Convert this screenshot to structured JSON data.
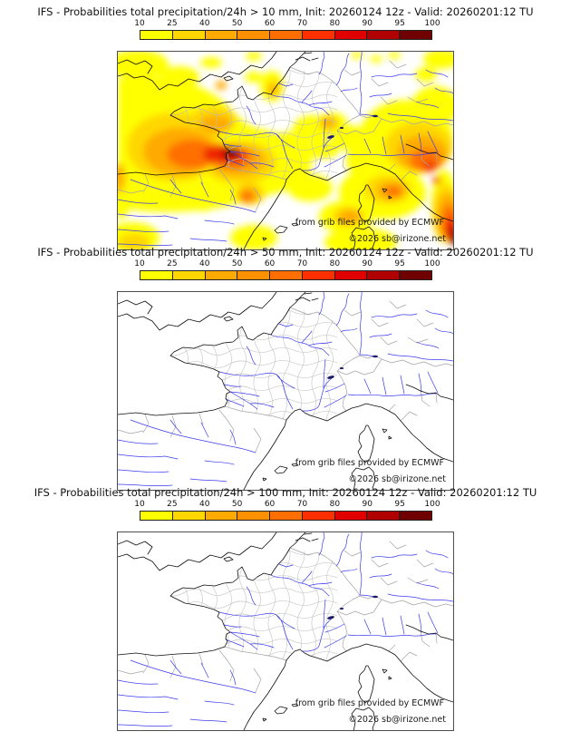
{
  "page": {
    "background": "#ffffff"
  },
  "colorbar": {
    "tick_labels": [
      "10",
      "25",
      "40",
      "50",
      "60",
      "70",
      "80",
      "90",
      "95",
      "100"
    ],
    "segment_colors": [
      "#ffff00",
      "#ffd700",
      "#ffaa00",
      "#ff9000",
      "#ff6e00",
      "#ff3000",
      "#e00000",
      "#b00000",
      "#700000"
    ]
  },
  "map_colors": {
    "coastline": "#000000",
    "admin_boundary": "#b5b5b5",
    "river": "#3c3cee",
    "lake": "#1a1a66",
    "frame": "#4d4d4d"
  },
  "panels": [
    {
      "title": "IFS - Probabilities total precipitation/24h > 10 mm, Init: 20260124 12z - Valid: 20260201:12 TU",
      "map": {
        "attribution": "from grib files provided by ECMWF",
        "copyright": "©2026 sb@irizone.net",
        "has_precipitation_shading": true
      }
    },
    {
      "title": "IFS - Probabilities total precipitation/24h > 50 mm, Init: 20260124 12z - Valid: 20260201:12 TU",
      "map": {
        "attribution": "from grib files provided by ECMWF",
        "copyright": "©2026 sb@irizone.net",
        "has_precipitation_shading": false
      }
    },
    {
      "title": "IFS - Probabilities total precipitation/24h > 100 mm, Init: 20260124 12z - Valid: 20260201:12 TU",
      "map": {
        "attribution": "from grib files provided by ECMWF",
        "copyright": "©2026 sb@irizone.net",
        "has_precipitation_shading": false
      }
    }
  ]
}
